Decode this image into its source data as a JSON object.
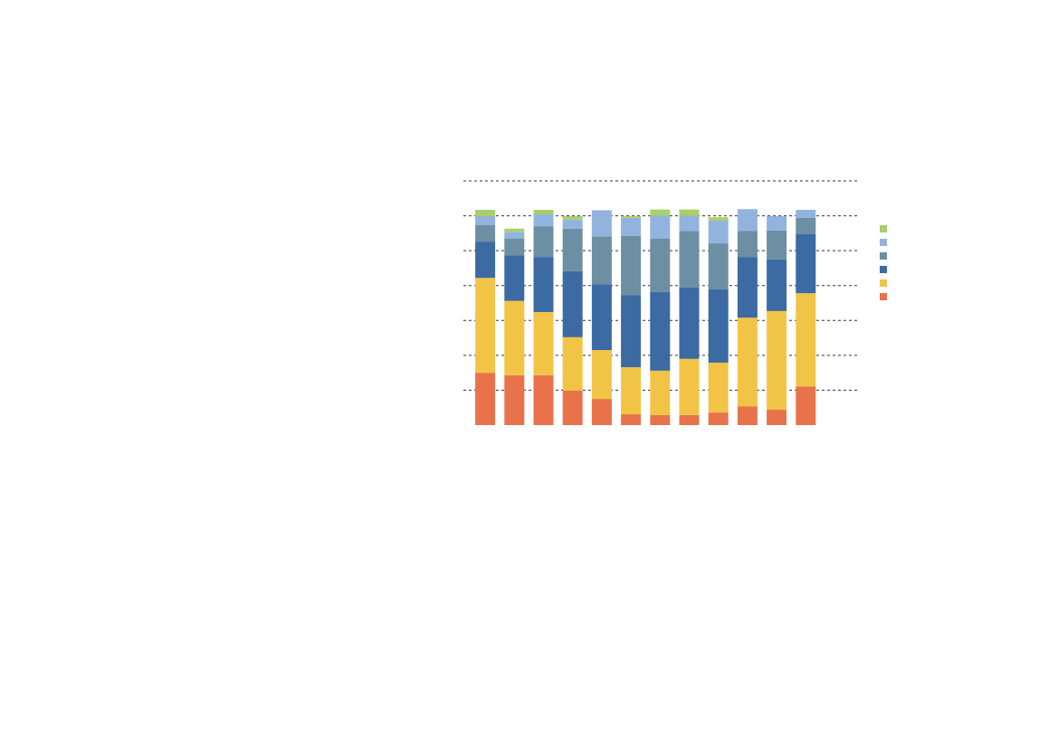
{
  "chart_data": {
    "type": "stacked_bar",
    "categories": [
      null,
      null,
      null,
      null,
      null,
      null,
      null,
      null,
      null,
      null,
      null,
      null
    ],
    "series": [
      {
        "color": "#e8734a",
        "values": [
          1.5,
          1.43,
          1.43,
          0.99,
          0.75,
          0.31,
          0.29,
          0.29,
          0.36,
          0.54,
          0.44,
          1.11
        ]
      },
      {
        "color": "#f2c446",
        "values": [
          2.72,
          2.13,
          1.81,
          1.53,
          1.4,
          1.35,
          1.27,
          1.61,
          1.43,
          2.54,
          2.83,
          2.67
        ]
      },
      {
        "color": "#3c6aa3",
        "values": [
          1.04,
          1.3,
          1.58,
          1.89,
          1.89,
          2.07,
          2.26,
          2.05,
          2.1,
          1.74,
          1.48,
          1.69
        ]
      },
      {
        "color": "#6c8fa3",
        "values": [
          0.47,
          0.49,
          0.88,
          1.22,
          1.37,
          1.69,
          1.53,
          1.61,
          1.32,
          0.75,
          0.83,
          0.47
        ]
      },
      {
        "color": "#93b3df",
        "values": [
          0.26,
          0.18,
          0.34,
          0.26,
          0.75,
          0.52,
          0.65,
          0.44,
          0.65,
          0.62,
          0.41,
          0.23
        ]
      },
      {
        "color": "#a6d06a",
        "values": [
          0.18,
          0.1,
          0.13,
          0.1,
          0,
          0.05,
          0.18,
          0.18,
          0.1,
          0,
          0,
          0
        ]
      }
    ],
    "ylim": [
      0,
      7
    ],
    "yticks": [
      1,
      2,
      3,
      4,
      5,
      6,
      7
    ],
    "grid": true
  }
}
